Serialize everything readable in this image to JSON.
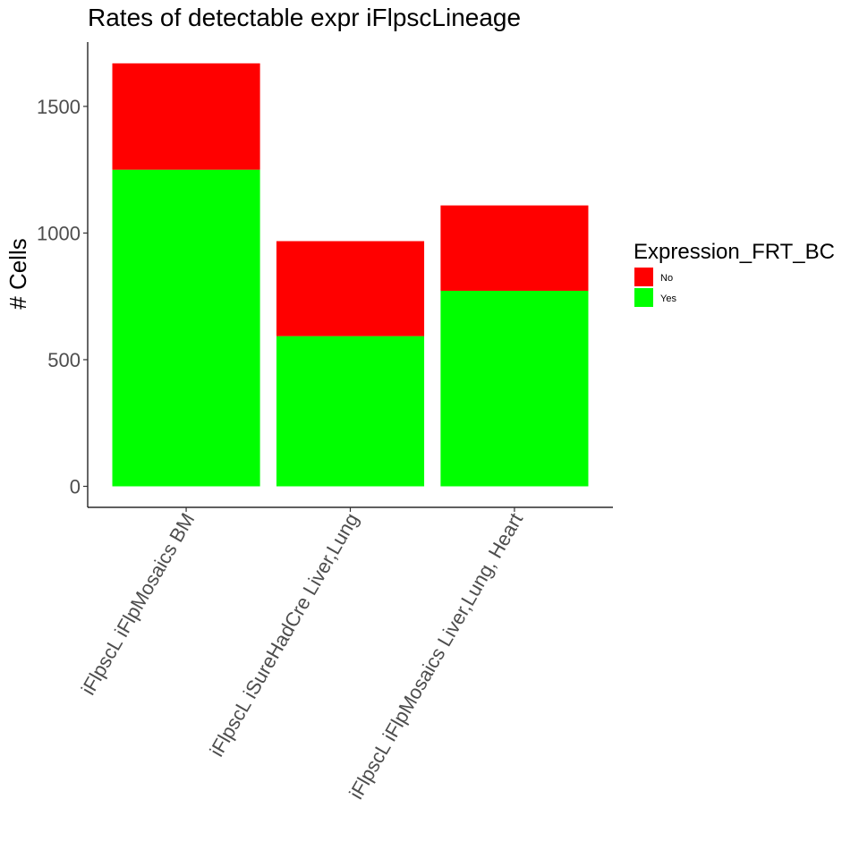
{
  "chart_data": {
    "type": "bar",
    "stacked": true,
    "title": "Rates of detectable expr iFlpscLineage",
    "xlabel": "",
    "ylabel": "# Cells",
    "categories": [
      "iFlpscL iFlpMosaics BM",
      "iFlpscL iSureHadCre Liver,Lung",
      "iFlpscL iFlpMosaics Liver,Lung, Heart"
    ],
    "series": [
      {
        "name": "Yes",
        "color": "#00ff00",
        "values": [
          1250,
          593,
          772
        ]
      },
      {
        "name": "No",
        "color": "#ff0000",
        "values": [
          420,
          375,
          337
        ]
      }
    ],
    "yticks": [
      0,
      500,
      1000,
      1500
    ],
    "ylim": [
      -83,
      1754
    ],
    "grid": false,
    "x_tick_rotation": -60,
    "legend": {
      "title": "Expression_FRT_BC",
      "position": "right",
      "entries": [
        {
          "label": "No",
          "color": "#ff0000"
        },
        {
          "label": "Yes",
          "color": "#00ff00"
        }
      ]
    }
  }
}
